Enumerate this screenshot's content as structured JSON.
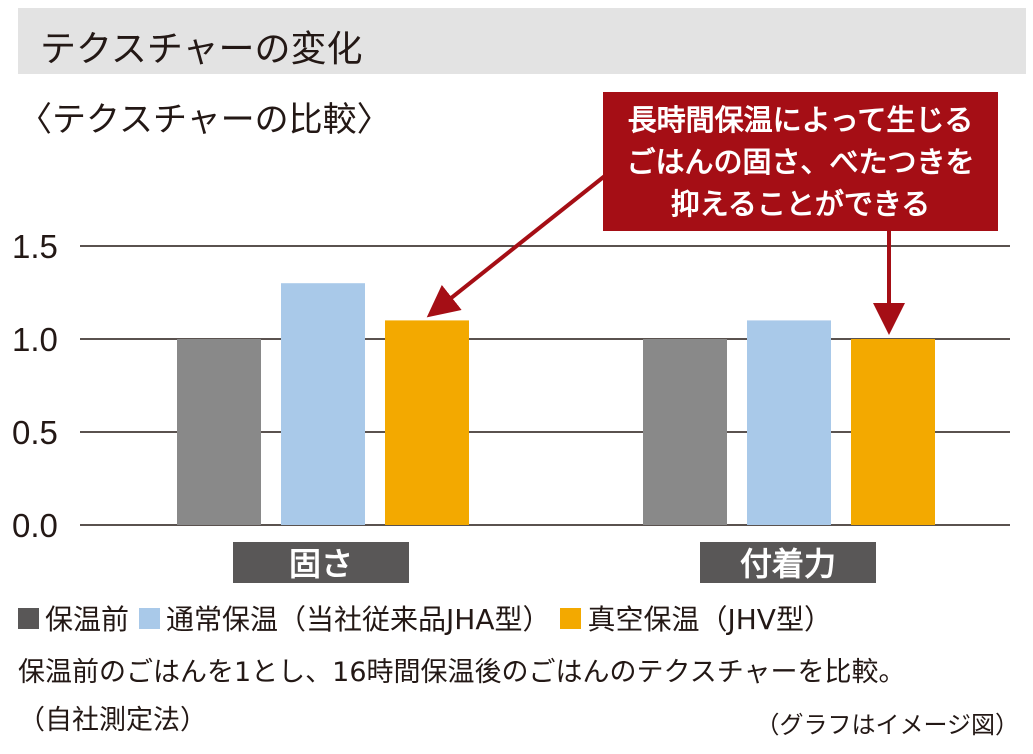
{
  "header": {
    "title": "テクスチャーの変化"
  },
  "callout": {
    "lines": [
      "長時間保温によって生じる",
      "ごはんの固さ、べたつきを",
      "抑えることができる"
    ]
  },
  "chart_data": {
    "type": "bar",
    "subtitle": "〈テクスチャーの比較〉",
    "categories": [
      "固さ",
      "付着力"
    ],
    "series": [
      {
        "name": "保温前",
        "color": "#898989",
        "values": [
          1.0,
          1.0
        ]
      },
      {
        "name": "通常保温（当社従来品JHA型）",
        "color": "#a9c9e9",
        "values": [
          1.3,
          1.1
        ]
      },
      {
        "name": "真空保温（JHV型）",
        "color": "#f3a900",
        "values": [
          1.1,
          1.0
        ]
      }
    ],
    "ylim": [
      0,
      1.5
    ],
    "yticks": [
      "0.0",
      "0.5",
      "1.0",
      "1.5"
    ],
    "ytick_values": [
      0,
      0.5,
      1.0,
      1.5
    ],
    "grid": true,
    "category_label_bg": "#595757"
  },
  "notes": {
    "line1": "保温前のごはんを1とし、16時間保温後のごはんのテクスチャーを比較。",
    "line2": "（自社測定法）",
    "line3": "（グラフはイメージ図）"
  }
}
